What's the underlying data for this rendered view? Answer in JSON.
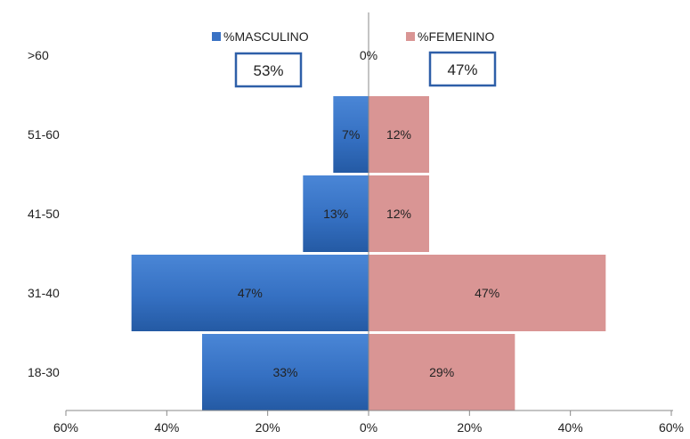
{
  "chart_data": {
    "type": "bar",
    "orientation": "horizontal-diverging",
    "categories": [
      ">60",
      "51-60",
      "41-50",
      "31-40",
      "18-30"
    ],
    "series": [
      {
        "name": "%MASCULINO",
        "color": "#3a72c4",
        "values": [
          0,
          7,
          13,
          47,
          33
        ],
        "labels": [
          "",
          "7%",
          "13%",
          "47%",
          "33%"
        ]
      },
      {
        "name": "%FEMENINO",
        "color": "#d99594",
        "values": [
          0,
          12,
          12,
          47,
          29
        ],
        "labels": [
          "",
          "12%",
          "12%",
          "47%",
          "29%"
        ]
      }
    ],
    "extra_labels": [
      {
        "text": "0%",
        "category": ">60"
      }
    ],
    "totals": [
      {
        "series": "%MASCULINO",
        "text": "53%"
      },
      {
        "series": "%FEMENINO",
        "text": "47%"
      }
    ],
    "xlim": [
      -60,
      60
    ],
    "x_ticks": [
      -60,
      -40,
      -20,
      0,
      20,
      40,
      60
    ],
    "x_tick_labels": [
      "60%",
      "40%",
      "20%",
      "0%",
      "20%",
      "40%",
      "60%"
    ],
    "grid": false,
    "legend_position": "top"
  }
}
